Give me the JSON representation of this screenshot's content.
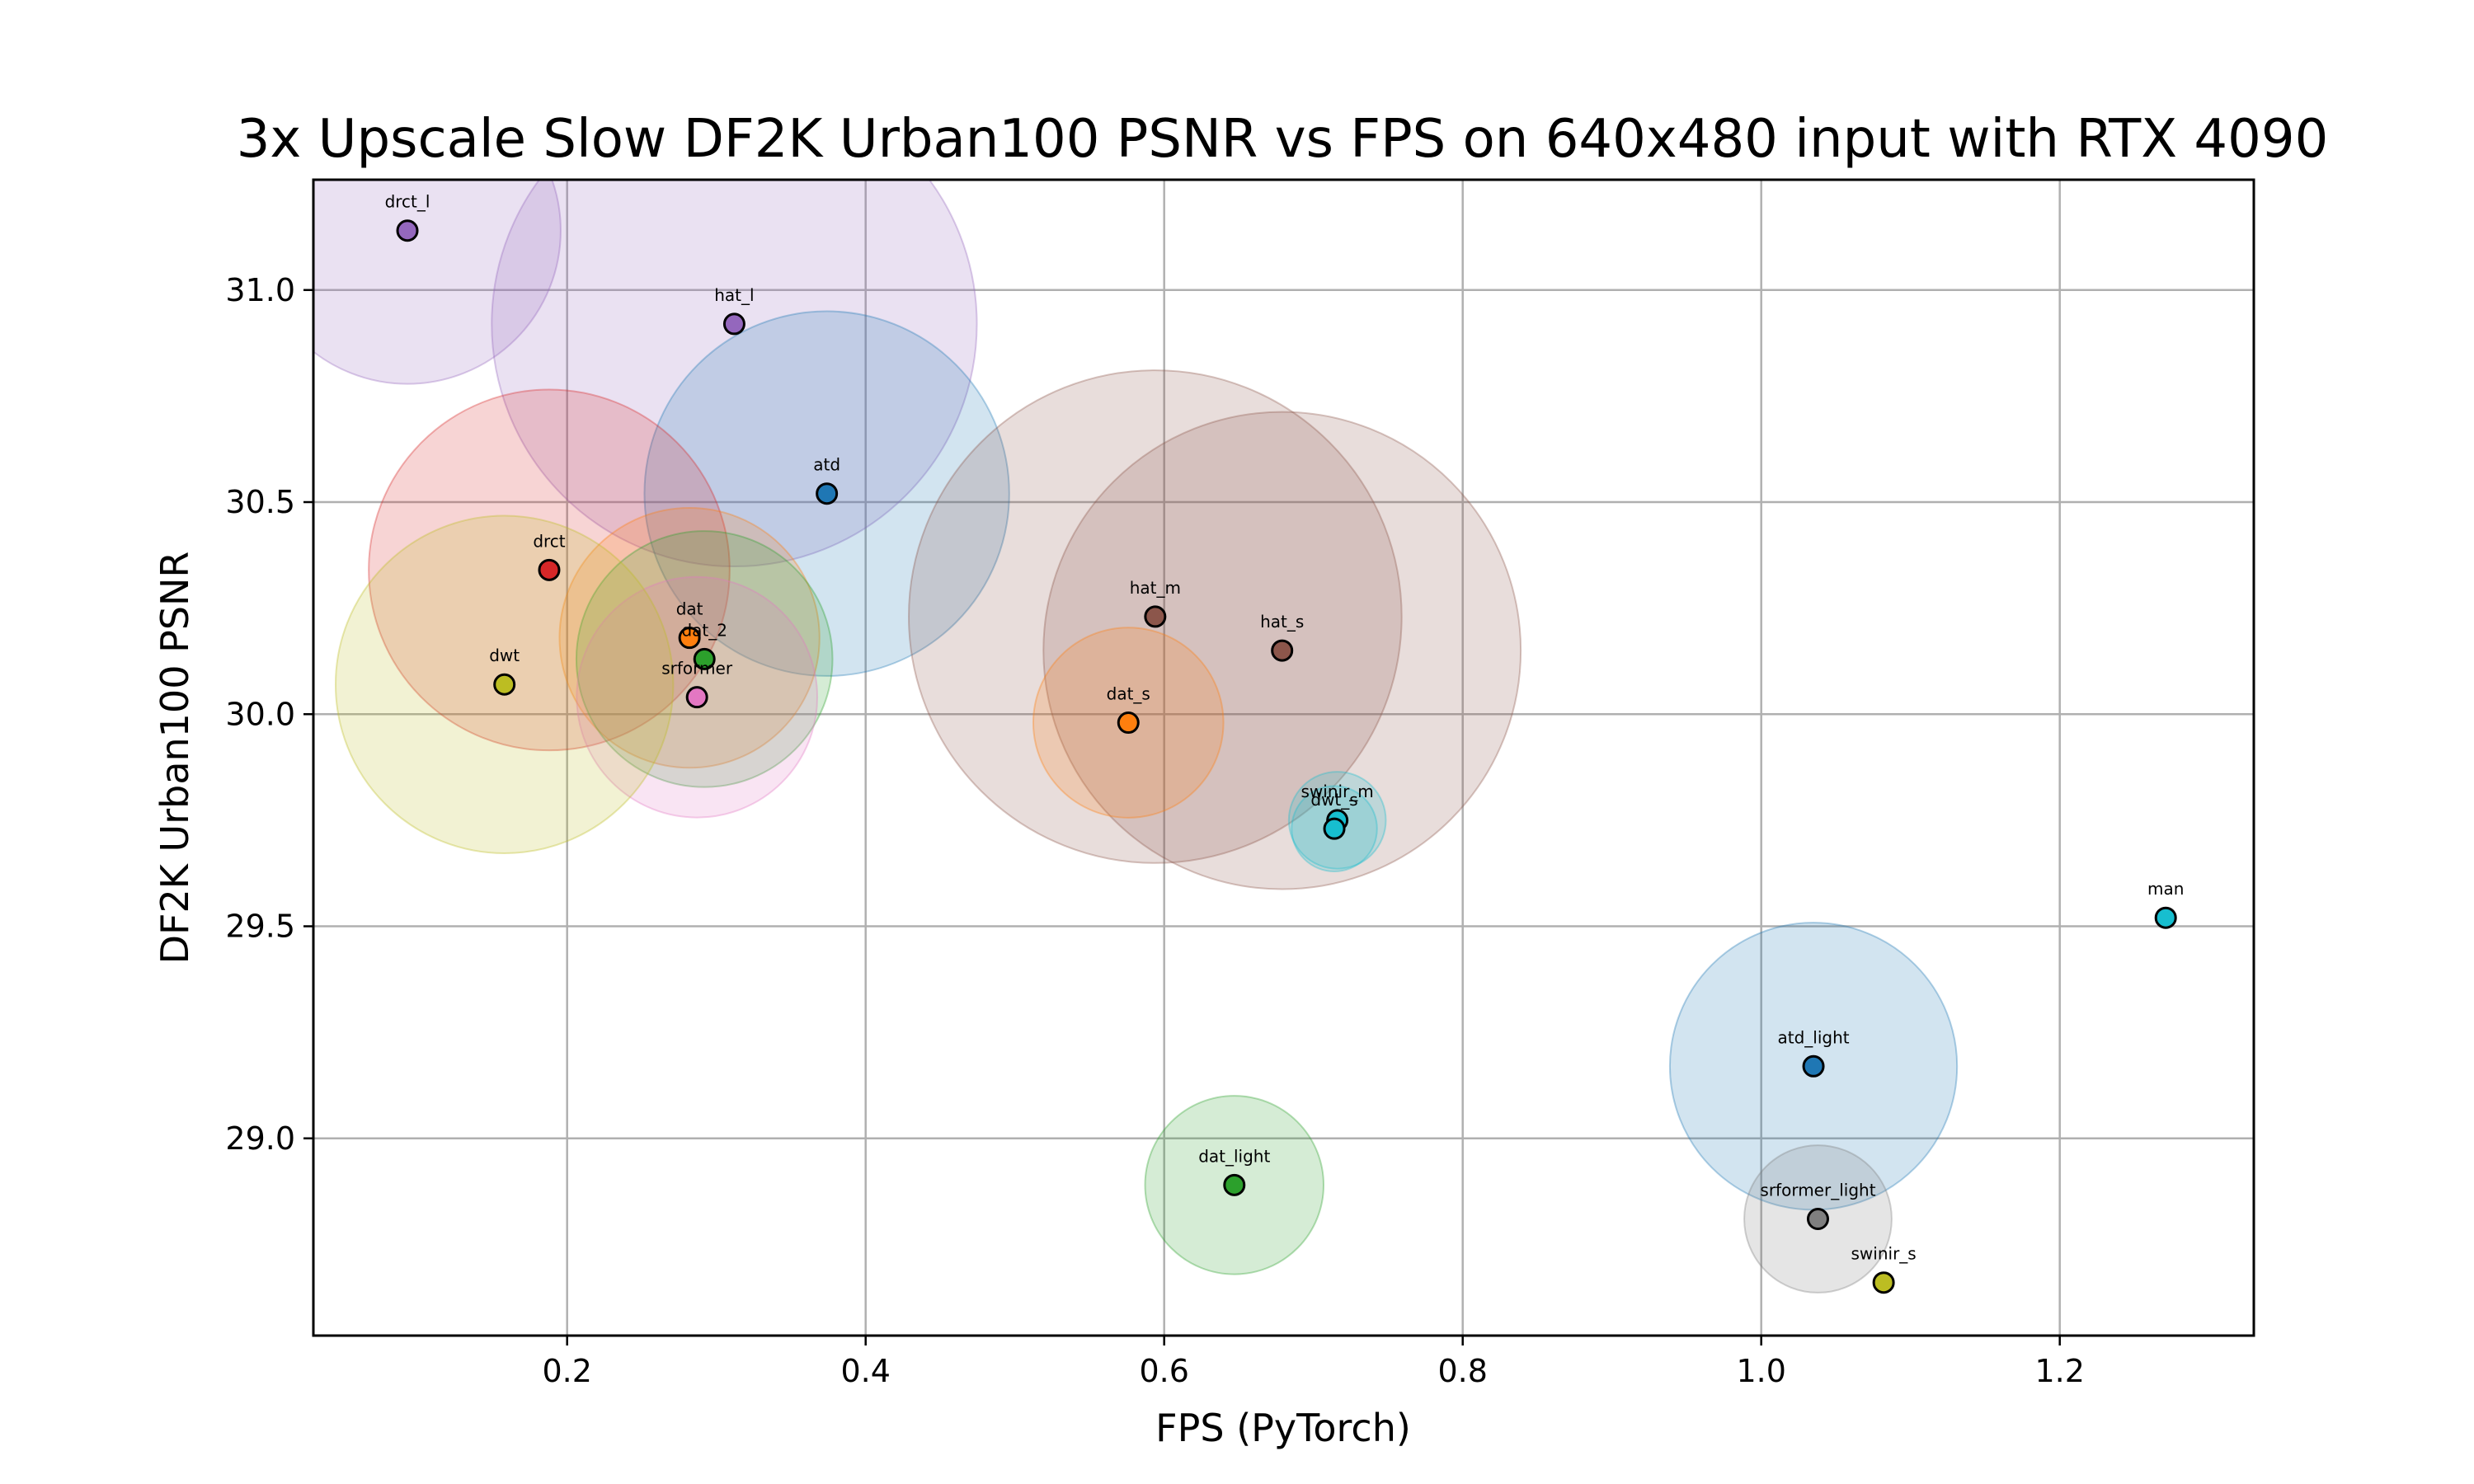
{
  "chart_data": {
    "type": "scatter",
    "title": "3x Upscale Slow DF2K Urban100 PSNR vs FPS on 640x480 input with RTX 4090",
    "xlabel": "FPS (PyTorch)",
    "ylabel": "DF2K Urban100 PSNR",
    "xlim": [
      0.03,
      1.33
    ],
    "ylim": [
      28.535,
      31.26
    ],
    "xticks": [
      0.2,
      0.4,
      0.6,
      0.8,
      1.0,
      1.2
    ],
    "xtick_labels": [
      "0.2",
      "0.4",
      "0.6",
      "0.8",
      "1.0",
      "1.2"
    ],
    "yticks": [
      29.0,
      29.5,
      30.0,
      30.5,
      31.0
    ],
    "ytick_labels": [
      "29.0",
      "29.5",
      "30.0",
      "30.5",
      "31.0"
    ],
    "grid": true,
    "bubble_size_note": "bubble area encodes relative model size",
    "points": [
      {
        "label": "drct_l",
        "x": 0.093,
        "y": 31.14,
        "r_ratio": 0.079,
        "color": "#9467bd"
      },
      {
        "label": "hat_l",
        "x": 0.312,
        "y": 30.92,
        "r_ratio": 0.125,
        "color": "#9467bd"
      },
      {
        "label": "atd",
        "x": 0.374,
        "y": 30.52,
        "r_ratio": 0.094,
        "color": "#1f77b4"
      },
      {
        "label": "drct",
        "x": 0.188,
        "y": 30.34,
        "r_ratio": 0.093,
        "color": "#d62728"
      },
      {
        "label": "dat",
        "x": 0.282,
        "y": 30.18,
        "r_ratio": 0.067,
        "color": "#ff7f0e"
      },
      {
        "label": "dat_2",
        "x": 0.292,
        "y": 30.13,
        "r_ratio": 0.066,
        "color": "#2ca02c"
      },
      {
        "label": "srformer",
        "x": 0.287,
        "y": 30.04,
        "r_ratio": 0.062,
        "color": "#e377c2"
      },
      {
        "label": "dwt",
        "x": 0.158,
        "y": 30.07,
        "r_ratio": 0.087,
        "color": "#bcbd22"
      },
      {
        "label": "hat_m",
        "x": 0.594,
        "y": 30.23,
        "r_ratio": 0.127,
        "color": "#8c564b"
      },
      {
        "label": "hat_s",
        "x": 0.679,
        "y": 30.15,
        "r_ratio": 0.123,
        "color": "#8c564b"
      },
      {
        "label": "dat_s",
        "x": 0.576,
        "y": 29.98,
        "r_ratio": 0.049,
        "color": "#ff7f0e"
      },
      {
        "label": "swinir_m",
        "x": 0.716,
        "y": 29.75,
        "r_ratio": 0.025,
        "color": "#17becf"
      },
      {
        "label": "dwt_s",
        "x": 0.714,
        "y": 29.73,
        "r_ratio": 0.022,
        "color": "#17becf"
      },
      {
        "label": "man",
        "x": 1.271,
        "y": 29.52,
        "r_ratio": 0.0,
        "color": "#17becf"
      },
      {
        "label": "atd_light",
        "x": 1.035,
        "y": 29.17,
        "r_ratio": 0.074,
        "color": "#1f77b4"
      },
      {
        "label": "dat_light",
        "x": 0.647,
        "y": 28.89,
        "r_ratio": 0.046,
        "color": "#2ca02c"
      },
      {
        "label": "srformer_light",
        "x": 1.038,
        "y": 28.81,
        "r_ratio": 0.038,
        "color": "#7f7f7f"
      },
      {
        "label": "swinir_s",
        "x": 1.082,
        "y": 28.66,
        "r_ratio": 0.0,
        "color": "#bcbd22"
      }
    ]
  }
}
